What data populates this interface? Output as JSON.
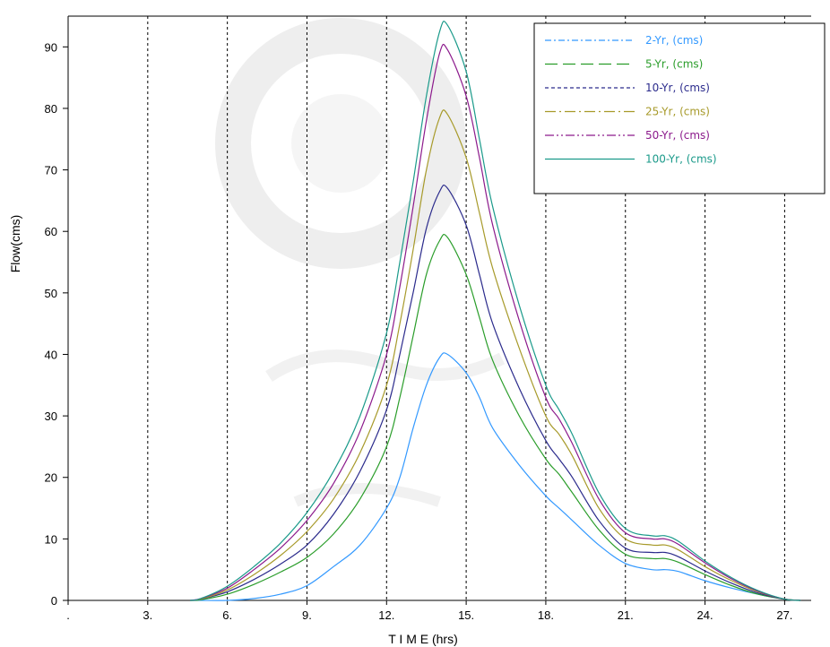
{
  "chart_data": {
    "type": "line",
    "xlabel": "T I M E (hrs)",
    "ylabel": "Flow(cms)",
    "xlim": [
      0,
      28
    ],
    "ylim": [
      0,
      95
    ],
    "x_ticks": [
      0,
      3,
      6,
      9,
      12,
      15,
      18,
      21,
      24,
      27
    ],
    "x_tick_labels": [
      ".",
      "3.",
      "6.",
      "9.",
      "12.",
      "15.",
      "18.",
      "21.",
      "24.",
      "27."
    ],
    "y_ticks": [
      0,
      10,
      20,
      30,
      40,
      50,
      60,
      70,
      80,
      90
    ],
    "y_tick_labels": [
      "0",
      "10",
      "20",
      "30",
      "40",
      "50",
      "60",
      "70",
      "80",
      "90"
    ],
    "vertical_grid": true,
    "legend_position": "top-right",
    "x": [
      4.6,
      5,
      6,
      7,
      8,
      9,
      10,
      11,
      12,
      12.5,
      13,
      13.5,
      14,
      14.3,
      15,
      15.5,
      16,
      17,
      18,
      18.5,
      19,
      20,
      21,
      22,
      22.5,
      23,
      24,
      25,
      26,
      27,
      27.6
    ],
    "series": [
      {
        "name": "2-Yr, (cms)",
        "color": "#3399ff",
        "dash": "7,3,2,3",
        "values": [
          0,
          0,
          0,
          0.3,
          1,
          2.4,
          5.5,
          9,
          15,
          20,
          28,
          35,
          39.5,
          40,
          37,
          33,
          28,
          22,
          17,
          15,
          13,
          9,
          6,
          5,
          5,
          4.7,
          3.2,
          2,
          1,
          0.2,
          0
        ]
      },
      {
        "name": "5-Yr, (cms)",
        "color": "#2a9d2a",
        "dash": "14,6",
        "values": [
          0,
          0.1,
          1,
          2.6,
          4.6,
          7,
          10.8,
          16.5,
          25,
          33,
          43,
          53,
          58.5,
          59,
          53,
          46,
          39,
          30,
          23,
          20.5,
          17.5,
          11.5,
          7.5,
          6.8,
          6.8,
          6.2,
          4.2,
          2.4,
          1,
          0.2,
          0
        ]
      },
      {
        "name": "10-Yr, (cms)",
        "color": "#2b2b8c",
        "dash": "4,3",
        "values": [
          0,
          0.2,
          1.4,
          3.4,
          5.9,
          9,
          14,
          21,
          31,
          40,
          50,
          60.5,
          66.5,
          67,
          61,
          53,
          45,
          34.5,
          26,
          23,
          20,
          13,
          8.5,
          7.8,
          7.8,
          7.1,
          4.8,
          2.8,
          1.2,
          0.2,
          0
        ]
      },
      {
        "name": "25-Yr, (cms)",
        "color": "#a79a2a",
        "dash": "12,4,2,4",
        "values": [
          0,
          0.2,
          1.7,
          4.2,
          7.3,
          11.2,
          16.5,
          24,
          35,
          45,
          57,
          70,
          78.5,
          79,
          72,
          63,
          54,
          41,
          30,
          27,
          23.5,
          15,
          10,
          9,
          9,
          8.2,
          5.5,
          3.2,
          1.4,
          0.2,
          0
        ]
      },
      {
        "name": "50-Yr, (cms)",
        "color": "#8c1a8c",
        "dash": "10,3,2,3,2,3",
        "values": [
          0,
          0.3,
          2,
          5,
          8.5,
          13,
          19,
          27.5,
          40,
          51,
          64,
          78,
          89,
          89.5,
          82,
          72,
          61,
          45.5,
          33,
          29.5,
          25.5,
          16.5,
          11,
          10,
          10,
          9.1,
          6.1,
          3.5,
          1.5,
          0.2,
          0
        ]
      },
      {
        "name": "100-Yr, (cms)",
        "color": "#1a9a8a",
        "dash": "",
        "values": [
          0,
          0.3,
          2.3,
          5.5,
          9.3,
          14.3,
          21,
          30,
          43.5,
          55,
          68,
          82,
          92.5,
          93.5,
          86,
          75,
          64,
          48,
          35,
          31,
          27,
          17.5,
          11.7,
          10.5,
          10.5,
          9.6,
          6.4,
          3.7,
          1.6,
          0.2,
          0
        ]
      }
    ]
  }
}
